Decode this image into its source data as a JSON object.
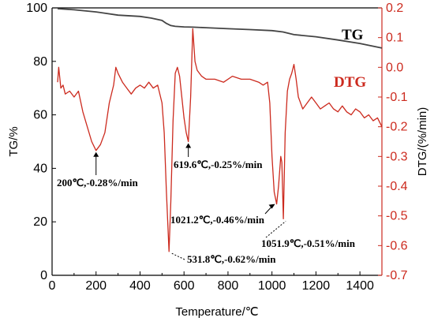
{
  "chart_data": {
    "type": "line",
    "xlabel": "Temperature/℃",
    "ylabel_left": "TG/%",
    "ylabel_right": "DTG/(%/min)",
    "xlim": [
      0,
      1500
    ],
    "ylim_left": [
      0,
      100
    ],
    "ylim_right": [
      -0.7,
      0.2
    ],
    "x_ticks": [
      "0",
      "200",
      "400",
      "600",
      "800",
      "1000",
      "1200",
      "1400"
    ],
    "y_left_ticks": [
      "0",
      "20",
      "40",
      "60",
      "80",
      "100"
    ],
    "y_right_ticks": [
      "0.2",
      "0.1",
      "0.0",
      "-0.1",
      "-0.2",
      "-0.3",
      "-0.4",
      "-0.5",
      "-0.6",
      "-0.7"
    ],
    "grid": false,
    "colors": {
      "tg": "#444444",
      "dtg": "#cc2a1e",
      "right_axis": "#cc2a1e"
    },
    "series": [
      {
        "name": "TG",
        "axis": "left",
        "x": [
          25,
          100,
          200,
          300,
          400,
          450,
          500,
          520,
          540,
          560,
          600,
          640,
          700,
          800,
          900,
          1000,
          1050,
          1100,
          1200,
          1300,
          1400,
          1500
        ],
        "y": [
          99.7,
          99.3,
          98.5,
          97.3,
          96.8,
          96.2,
          95.3,
          94.2,
          93.4,
          93.1,
          92.9,
          92.8,
          92.6,
          92.2,
          91.9,
          91.5,
          91.0,
          90.0,
          89.2,
          88.0,
          86.7,
          85.0
        ]
      },
      {
        "name": "DTG",
        "axis": "right",
        "x": [
          25,
          30,
          40,
          50,
          60,
          80,
          100,
          120,
          140,
          160,
          180,
          200,
          220,
          240,
          260,
          280,
          290,
          300,
          320,
          340,
          360,
          380,
          400,
          420,
          440,
          460,
          480,
          500,
          510,
          520,
          531.8,
          540,
          550,
          560,
          570,
          580,
          590,
          600,
          610,
          619.6,
          630,
          640,
          650,
          660,
          680,
          700,
          740,
          780,
          820,
          860,
          900,
          940,
          960,
          980,
          990,
          1000,
          1010,
          1021.2,
          1030,
          1040,
          1045,
          1051.9,
          1060,
          1070,
          1080,
          1090,
          1100,
          1110,
          1120,
          1140,
          1160,
          1180,
          1200,
          1220,
          1240,
          1260,
          1280,
          1300,
          1320,
          1340,
          1360,
          1380,
          1400,
          1420,
          1440,
          1460,
          1480,
          1500
        ],
        "y": [
          -0.05,
          0.0,
          -0.07,
          -0.06,
          -0.09,
          -0.08,
          -0.1,
          -0.08,
          -0.15,
          -0.2,
          -0.25,
          -0.28,
          -0.26,
          -0.22,
          -0.12,
          -0.06,
          -0.0,
          -0.02,
          -0.05,
          -0.07,
          -0.09,
          -0.07,
          -0.06,
          -0.07,
          -0.05,
          -0.07,
          -0.06,
          -0.12,
          -0.22,
          -0.42,
          -0.62,
          -0.45,
          -0.18,
          -0.02,
          0.0,
          -0.03,
          -0.1,
          -0.17,
          -0.22,
          -0.25,
          -0.1,
          0.13,
          0.02,
          -0.01,
          -0.03,
          -0.04,
          -0.04,
          -0.05,
          -0.03,
          -0.04,
          -0.04,
          -0.05,
          -0.06,
          -0.05,
          -0.12,
          -0.3,
          -0.42,
          -0.46,
          -0.4,
          -0.3,
          -0.32,
          -0.51,
          -0.22,
          -0.08,
          -0.04,
          -0.02,
          0.01,
          -0.04,
          -0.1,
          -0.14,
          -0.12,
          -0.1,
          -0.12,
          -0.14,
          -0.13,
          -0.12,
          -0.14,
          -0.15,
          -0.13,
          -0.15,
          -0.16,
          -0.14,
          -0.15,
          -0.17,
          -0.16,
          -0.18,
          -0.17,
          -0.2
        ]
      }
    ],
    "annotations": [
      {
        "text": "200℃,-0.28%/min",
        "x": 200,
        "y": -0.28
      },
      {
        "text": "619.6℃,-0.25%/min",
        "x": 619.6,
        "y": -0.25
      },
      {
        "text": "531.8℃,-0.62%/min",
        "x": 531.8,
        "y": -0.62
      },
      {
        "text": "1021.2℃,-0.46%/min",
        "x": 1021.2,
        "y": -0.46
      },
      {
        "text": "1051.9℃,-0.51%/min",
        "x": 1051.9,
        "y": -0.51
      }
    ]
  }
}
